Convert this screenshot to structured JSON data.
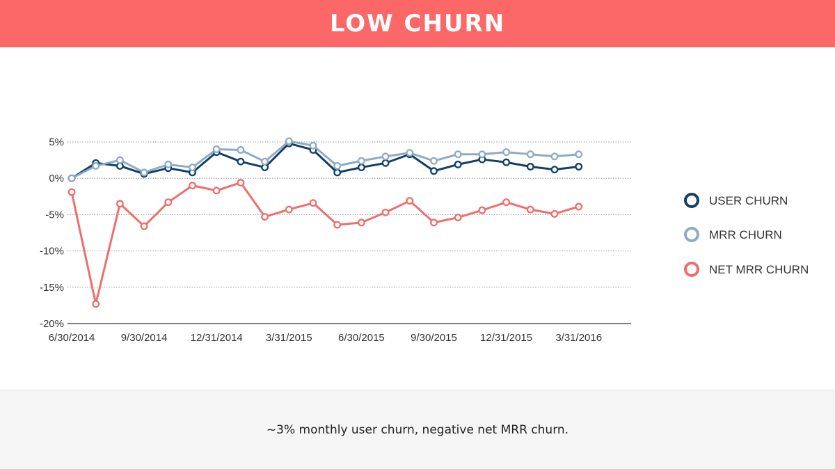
{
  "header": {
    "title": "LOW CHURN"
  },
  "footer": {
    "caption": "~3% monthly user churn, negative net MRR churn."
  },
  "colors": {
    "header_bg": "#fc6868",
    "user": "#123f66",
    "mrr": "#8eabc3",
    "net": "#ef6e6b",
    "footer_bg": "#f5f5f5"
  },
  "chart_data": {
    "type": "line",
    "x": [
      "6/30/2014",
      "7/31/2014",
      "8/31/2014",
      "9/30/2014",
      "10/31/2014",
      "11/30/2014",
      "12/31/2014",
      "1/31/2015",
      "2/28/2015",
      "3/31/2015",
      "4/30/2015",
      "5/31/2015",
      "6/30/2015",
      "7/31/2015",
      "8/31/2015",
      "9/30/2015",
      "10/31/2015",
      "11/30/2015",
      "12/31/2015",
      "1/31/2016",
      "2/29/2016",
      "3/31/2016",
      "4/30/2016"
    ],
    "x_tick_labels": [
      "6/30/2014",
      "9/30/2014",
      "12/31/2014",
      "3/31/2015",
      "6/30/2015",
      "9/30/2015",
      "12/31/2015",
      "3/31/2016"
    ],
    "y_tick_labels": [
      "5%",
      "0%",
      "-5%",
      "-10%",
      "-15%",
      "-20%"
    ],
    "ylim": [
      -20,
      5
    ],
    "grid": true,
    "legend_position": "right",
    "series": [
      {
        "name": "USER CHURN",
        "color": "#123f66",
        "values": [
          0,
          2.1,
          1.7,
          0.6,
          1.4,
          0.8,
          3.6,
          2.3,
          1.5,
          4.8,
          3.9,
          0.8,
          1.5,
          2.1,
          3.3,
          1.0,
          1.9,
          2.6,
          2.2,
          1.6,
          1.2,
          1.6,
          null
        ]
      },
      {
        "name": "MRR CHURN",
        "color": "#8eabc3",
        "values": [
          0,
          1.7,
          2.5,
          0.8,
          1.9,
          1.5,
          4.0,
          3.9,
          2.3,
          5.1,
          4.5,
          1.7,
          2.4,
          3.0,
          3.5,
          2.4,
          3.3,
          3.3,
          3.6,
          3.3,
          3.0,
          3.3,
          null
        ]
      },
      {
        "name": "NET MRR CHURN",
        "color": "#ef6e6b",
        "values": [
          -1.9,
          -17.3,
          -3.5,
          -6.6,
          -3.3,
          -1.0,
          -1.7,
          -0.6,
          -5.3,
          -4.3,
          -3.4,
          -6.4,
          -6.1,
          -4.7,
          -3.1,
          -6.1,
          -5.4,
          -4.4,
          -3.3,
          -4.3,
          -4.9,
          -3.9,
          null
        ]
      }
    ]
  }
}
